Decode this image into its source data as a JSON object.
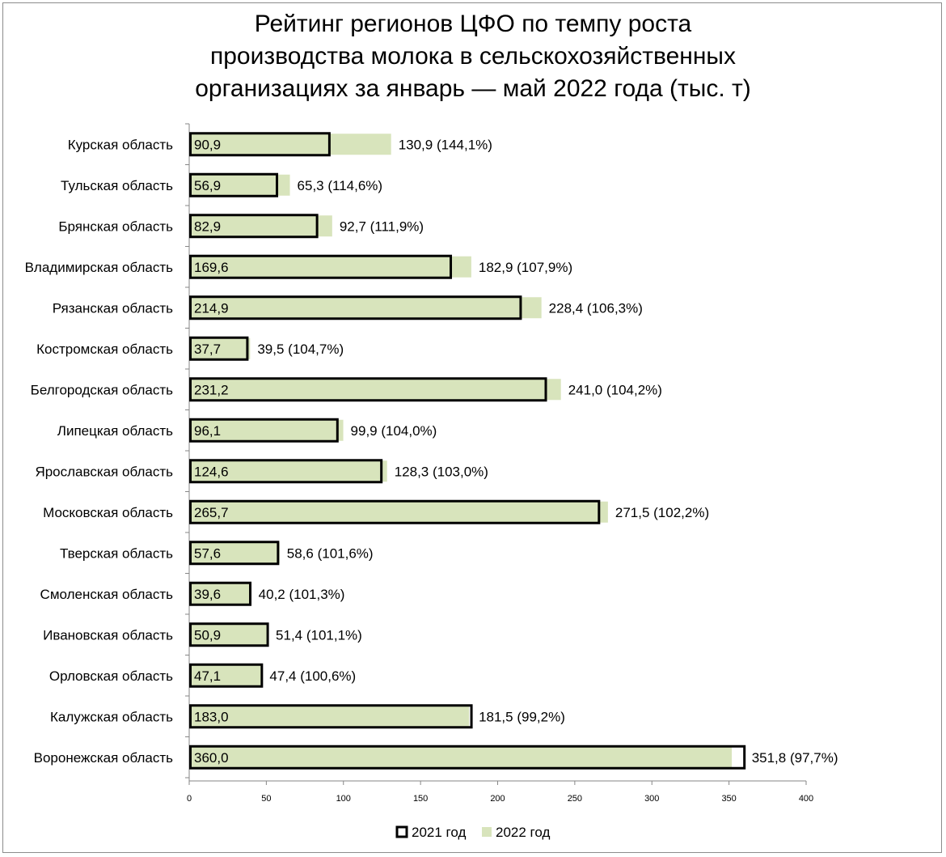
{
  "chart_data": {
    "type": "bar",
    "orientation": "horizontal",
    "title_lines": [
      "Рейтинг регионов ЦФО по темпу роста",
      "производства молока в сельскохозяйственных",
      "организациях за январь — май 2022 года (тыс. т)"
    ],
    "categories": [
      "Курская область",
      "Тульская область",
      "Брянская область",
      "Владимирская область",
      "Рязанская область",
      "Костромская область",
      "Белгородская область",
      "Липецкая область",
      "Ярославская область",
      "Московская область",
      "Тверская область",
      "Смоленская область",
      "Ивановская область",
      "Орловская область",
      "Калужская область",
      "Воронежская область"
    ],
    "series": [
      {
        "name": "2021 год",
        "values": [
          90.9,
          56.9,
          82.9,
          169.6,
          214.9,
          37.7,
          231.2,
          96.1,
          124.6,
          265.7,
          57.6,
          39.6,
          50.9,
          47.1,
          183.0,
          360.0
        ],
        "labels": [
          "90,9",
          "56,9",
          "82,9",
          "169,6",
          "214,9",
          "37,7",
          "231,2",
          "96,1",
          "124,6",
          "265,7",
          "57,6",
          "39,6",
          "50,9",
          "47,1",
          "183,0",
          "360,0"
        ],
        "color": "#ffffff",
        "border": "#000000"
      },
      {
        "name": "2022 год",
        "values": [
          130.9,
          65.3,
          92.7,
          182.9,
          228.4,
          39.5,
          241.0,
          99.9,
          128.3,
          271.5,
          58.6,
          40.2,
          51.4,
          47.4,
          181.5,
          351.8
        ],
        "labels": [
          "130,9 (144,1%)",
          "65,3 (114,6%)",
          "92,7 (111,9%)",
          "182,9 (107,9%)",
          "228,4 (106,3%)",
          "39,5 (104,7%)",
          "241,0 (104,2%)",
          "99,9 (104,0%)",
          "128,3 (103,0%)",
          "271,5 (102,2%)",
          "58,6 (101,6%)",
          "40,2 (101,3%)",
          "51,4 (101,1%)",
          "47,4 (100,6%)",
          "181,5 (99,2%)",
          "351,8 (97,7%)"
        ],
        "color": "#d8e4bc"
      }
    ],
    "xlim": [
      0,
      400
    ],
    "xticks": [
      0,
      50,
      100,
      150,
      200,
      250,
      300,
      350,
      400
    ],
    "grid": false,
    "legend_position": "bottom"
  }
}
